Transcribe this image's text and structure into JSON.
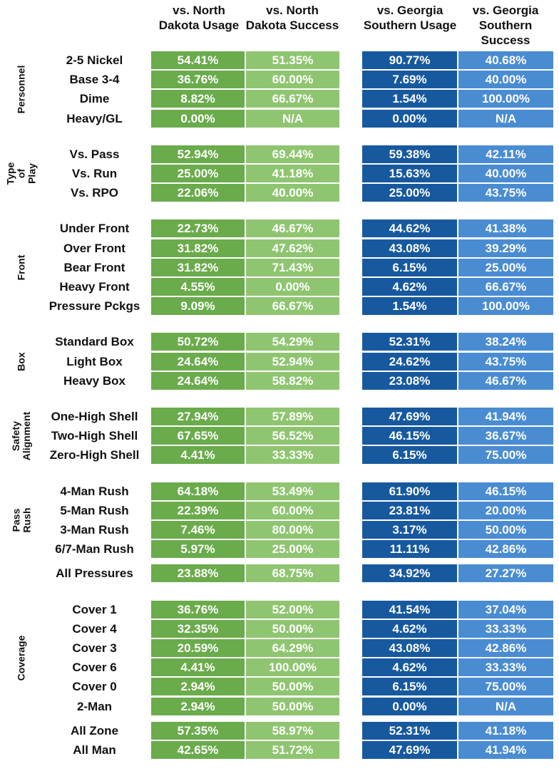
{
  "headers": [
    "vs. North Dakota Usage",
    "vs. North Dakota Success",
    "vs. Georgia Southern Usage",
    "vs. Georgia Southern Success"
  ],
  "colors": {
    "nd_usage": "#6aab4b",
    "nd_success": "#8fc570",
    "gs_usage": "#17599e",
    "gs_success": "#4a8cd2"
  },
  "groups": [
    {
      "category": "Personnel",
      "rows": [
        {
          "label": "2-5 Nickel",
          "values": [
            "54.41%",
            "51.35%",
            "90.77%",
            "40.68%"
          ]
        },
        {
          "label": "Base 3-4",
          "values": [
            "36.76%",
            "60.00%",
            "7.69%",
            "40.00%"
          ]
        },
        {
          "label": "Dime",
          "values": [
            "8.82%",
            "66.67%",
            "1.54%",
            "100.00%"
          ]
        },
        {
          "label": "Heavy/GL",
          "values": [
            "0.00%",
            "N/A",
            "0.00%",
            "N/A"
          ]
        }
      ]
    },
    {
      "category": "Type of Play",
      "rows": [
        {
          "label": "Vs. Pass",
          "values": [
            "52.94%",
            "69.44%",
            "59.38%",
            "42.11%"
          ]
        },
        {
          "label": "Vs. Run",
          "values": [
            "25.00%",
            "41.18%",
            "15.63%",
            "40.00%"
          ]
        },
        {
          "label": "Vs. RPO",
          "values": [
            "22.06%",
            "40.00%",
            "25.00%",
            "43.75%"
          ]
        }
      ]
    },
    {
      "category": "Front",
      "rows": [
        {
          "label": "Under Front",
          "values": [
            "22.73%",
            "46.67%",
            "44.62%",
            "41.38%"
          ]
        },
        {
          "label": "Over Front",
          "values": [
            "31.82%",
            "47.62%",
            "43.08%",
            "39.29%"
          ]
        },
        {
          "label": "Bear Front",
          "values": [
            "31.82%",
            "71.43%",
            "6.15%",
            "25.00%"
          ]
        },
        {
          "label": "Heavy Front",
          "values": [
            "4.55%",
            "0.00%",
            "4.62%",
            "66.67%"
          ]
        },
        {
          "label": "Pressure Pckgs",
          "values": [
            "9.09%",
            "66.67%",
            "1.54%",
            "100.00%"
          ]
        }
      ]
    },
    {
      "category": "Box",
      "rows": [
        {
          "label": "Standard Box",
          "values": [
            "50.72%",
            "54.29%",
            "52.31%",
            "38.24%"
          ]
        },
        {
          "label": "Light Box",
          "values": [
            "24.64%",
            "52.94%",
            "24.62%",
            "43.75%"
          ]
        },
        {
          "label": "Heavy Box",
          "values": [
            "24.64%",
            "58.82%",
            "23.08%",
            "46.67%"
          ]
        }
      ]
    },
    {
      "category": "Safety Alignment",
      "rows": [
        {
          "label": "One-High Shell",
          "values": [
            "27.94%",
            "57.89%",
            "47.69%",
            "41.94%"
          ]
        },
        {
          "label": "Two-High Shell",
          "values": [
            "67.65%",
            "56.52%",
            "46.15%",
            "36.67%"
          ]
        },
        {
          "label": "Zero-High Shell",
          "values": [
            "4.41%",
            "33.33%",
            "6.15%",
            "75.00%"
          ]
        }
      ]
    },
    {
      "category": "Pass Rush",
      "rows": [
        {
          "label": "4-Man Rush",
          "values": [
            "64.18%",
            "53.49%",
            "61.90%",
            "46.15%"
          ]
        },
        {
          "label": "5-Man Rush",
          "values": [
            "22.39%",
            "60.00%",
            "23.81%",
            "20.00%"
          ]
        },
        {
          "label": "3-Man Rush",
          "values": [
            "7.46%",
            "80.00%",
            "3.17%",
            "50.00%"
          ]
        },
        {
          "label": "6/7-Man Rush",
          "values": [
            "5.97%",
            "25.00%",
            "11.11%",
            "42.86%"
          ]
        }
      ]
    },
    {
      "category": "",
      "rows": [
        {
          "label": "All Pressures",
          "values": [
            "23.88%",
            "68.75%",
            "34.92%",
            "27.27%"
          ]
        }
      ]
    },
    {
      "category": "Coverage",
      "rows": [
        {
          "label": "Cover 1",
          "values": [
            "36.76%",
            "52.00%",
            "41.54%",
            "37.04%"
          ]
        },
        {
          "label": "Cover 4",
          "values": [
            "32.35%",
            "50.00%",
            "4.62%",
            "33.33%"
          ]
        },
        {
          "label": "Cover 3",
          "values": [
            "20.59%",
            "64.29%",
            "43.08%",
            "42.86%"
          ]
        },
        {
          "label": "Cover 6",
          "values": [
            "4.41%",
            "100.00%",
            "4.62%",
            "33.33%"
          ]
        },
        {
          "label": "Cover 0",
          "values": [
            "2.94%",
            "50.00%",
            "6.15%",
            "75.00%"
          ]
        },
        {
          "label": "2-Man",
          "values": [
            "2.94%",
            "50.00%",
            "0.00%",
            "N/A"
          ]
        }
      ]
    },
    {
      "category": "",
      "rows": [
        {
          "label": "All Zone",
          "values": [
            "57.35%",
            "58.97%",
            "52.31%",
            "41.18%"
          ]
        },
        {
          "label": "All Man",
          "values": [
            "42.65%",
            "51.72%",
            "47.69%",
            "41.94%"
          ]
        }
      ]
    }
  ]
}
